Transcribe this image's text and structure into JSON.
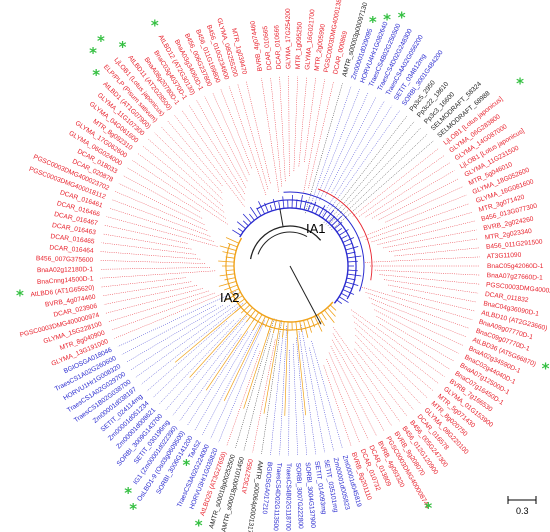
{
  "colors": {
    "red": "#e8212c",
    "blue": "#2a2bd0",
    "orange": "#f0a21a",
    "black": "#222222",
    "star": "#36c043",
    "dotted": "#a8a8d0"
  },
  "clades": [
    {
      "label": "IA1",
      "color": "#2a2bd0"
    },
    {
      "label": "IA2",
      "color": "#f0a21a"
    }
  ],
  "scale_bar": {
    "label": "0.3"
  },
  "leaves_right": [
    {
      "name": "BVRB_4g074460",
      "color": "red"
    },
    {
      "name": "DCAR_010665",
      "color": "red"
    },
    {
      "name": "DCAR_010666",
      "color": "red"
    },
    {
      "name": "GLYMA_17G254200",
      "color": "red"
    },
    {
      "name": "MTR_1g095250",
      "color": "red"
    },
    {
      "name": "GLYMA_16G021700",
      "color": "red"
    },
    {
      "name": "MTR_2g005990",
      "color": "red"
    },
    {
      "name": "PGSC0003DMG400013820",
      "color": "red"
    },
    {
      "name": "DCAR_000869",
      "color": "red"
    },
    {
      "name": "AMTR_s00003p00097130",
      "color": "black"
    },
    {
      "name": "Zm00001d029095",
      "color": "blue",
      "star": true
    },
    {
      "name": "HORVU4Hr1G082640",
      "color": "blue",
      "star": true
    },
    {
      "name": "TraesCS4B02G250500",
      "color": "blue",
      "star": true
    },
    {
      "name": "TraesCS4D02G248300",
      "color": "blue"
    },
    {
      "name": "TraesCS4A02G056200",
      "color": "blue"
    },
    {
      "name": "SETIT_034812mg",
      "color": "blue"
    },
    {
      "name": "SORBI_3001G484200",
      "color": "blue"
    },
    {
      "name": "Pp3c5_2950",
      "color": "black"
    },
    {
      "name": "Pp3c22_18610",
      "color": "black"
    },
    {
      "name": "Pp3c3_16600",
      "color": "black"
    },
    {
      "name": "SELMODRAFT_58324",
      "color": "black"
    },
    {
      "name": "SELMODRAFT_68988",
      "color": "black"
    },
    {
      "name": "LjLOB1 [Lotus japonicus]",
      "color": "red",
      "star": true
    },
    {
      "name": "GLYMA_06G283800",
      "color": "red"
    },
    {
      "name": "GLYMA_14G087000",
      "color": "red"
    },
    {
      "name": "LjLOB1 [Lotus japonicus]",
      "color": "red"
    },
    {
      "name": "GLYMA_11G231500",
      "color": "red"
    },
    {
      "name": "MTR_5g046010",
      "color": "red"
    },
    {
      "name": "GLYMA_18G052600",
      "color": "red"
    },
    {
      "name": "GLYMA_16G081600",
      "color": "red"
    },
    {
      "name": "MTR_3g071420",
      "color": "red"
    },
    {
      "name": "B456_013G077300",
      "color": "red"
    },
    {
      "name": "BVRB_2g024260",
      "color": "red"
    },
    {
      "name": "MTR_2g023340",
      "color": "red"
    },
    {
      "name": "B456_011G291500",
      "color": "red"
    },
    {
      "name": "AT3G11090",
      "color": "red"
    },
    {
      "name": "BnaC05g42060D-1",
      "color": "red"
    },
    {
      "name": "BnaA07g27660D-1",
      "color": "red"
    },
    {
      "name": "PGSC0003DMG400027718",
      "color": "red"
    },
    {
      "name": "DCAR_011832",
      "color": "red"
    },
    {
      "name": "BnaC04g36090D-1",
      "color": "red"
    },
    {
      "name": "AtLBD10 (AT2G23660)",
      "color": "red",
      "star": true
    },
    {
      "name": "BnaA09g07770D-1",
      "color": "red"
    },
    {
      "name": "BnaC09g07770D-1",
      "color": "red"
    },
    {
      "name": "AtLBD36 (AT5G66870)",
      "color": "red",
      "star": true
    },
    {
      "name": "BnaA02g34590D-1",
      "color": "red"
    },
    {
      "name": "BnaC02g44040D-1",
      "color": "red"
    },
    {
      "name": "BnaA07g12500D-1",
      "color": "red"
    },
    {
      "name": "BnaC07g16450D-1",
      "color": "red"
    },
    {
      "name": "BVRB_7g166530",
      "color": "red"
    },
    {
      "name": "GLYMA_01G153900",
      "color": "red"
    },
    {
      "name": "MTR_5g071430",
      "color": "red"
    },
    {
      "name": "MTR_8g020750",
      "color": "red"
    },
    {
      "name": "GLYMA_08G220100",
      "color": "red"
    },
    {
      "name": "DCAR_016578",
      "color": "red"
    },
    {
      "name": "B456_005G247300",
      "color": "red"
    },
    {
      "name": "B456_012G120900",
      "color": "red"
    },
    {
      "name": "BVRB_9g208070",
      "color": "red"
    },
    {
      "name": "PGSC0003DMG400008744",
      "color": "red",
      "star": true
    },
    {
      "name": "BVRB_4g093320",
      "color": "red"
    },
    {
      "name": "DCAR_013809",
      "color": "red"
    },
    {
      "name": "DCAR_010732",
      "color": "red"
    },
    {
      "name": "BVRB_8g201110",
      "color": "red"
    },
    {
      "name": "Zm00001d045819",
      "color": "blue"
    },
    {
      "name": "Zm00001d005823",
      "color": "blue"
    },
    {
      "name": "SETIT_035101mg",
      "color": "blue"
    },
    {
      "name": "SETIT_014093mg",
      "color": "blue"
    },
    {
      "name": "SORBI_3004G137900",
      "color": "blue"
    },
    {
      "name": "SORBI_3007G222800",
      "color": "blue"
    },
    {
      "name": "TraesCS4B02G118700",
      "color": "blue"
    },
    {
      "name": "TraesCS4D02G113500",
      "color": "blue"
    },
    {
      "name": "BGIOSGA017210",
      "color": "blue"
    },
    {
      "name": "AMTR_s00064p00013170",
      "color": "black"
    }
  ],
  "leaves_left": [
    {
      "name": "AT3G27650",
      "color": "red"
    },
    {
      "name": "AMTR_s00018p00101450",
      "color": "black"
    },
    {
      "name": "AMTR_s00018p00252500",
      "color": "black"
    },
    {
      "name": "AtLBD25 (AT3G27650)",
      "color": "red",
      "star": true
    },
    {
      "name": "HORVU3Hr1G035820",
      "color": "blue"
    },
    {
      "name": "TraesCS3A02G224000",
      "color": "blue"
    },
    {
      "name": "TaAS2",
      "color": "blue",
      "star": true
    },
    {
      "name": "SORBI_3006G141200",
      "color": "blue"
    },
    {
      "name": "OsLBD1-9 (Os03g0609500)",
      "color": "blue",
      "star": true
    },
    {
      "name": "IG1 (Zm00001d022390)",
      "color": "blue",
      "star": true
    },
    {
      "name": "SETIT_030196mg",
      "color": "blue"
    },
    {
      "name": "SORBI_3009G143700",
      "color": "blue"
    },
    {
      "name": "Zm00001d008621",
      "color": "blue"
    },
    {
      "name": "Zm00001d051234",
      "color": "blue"
    },
    {
      "name": "SETIT_024114mg",
      "color": "blue"
    },
    {
      "name": "Zm00001d038197",
      "color": "blue"
    },
    {
      "name": "TraesCS1B02G038700",
      "color": "blue"
    },
    {
      "name": "TraesCS1A02G029700",
      "color": "blue"
    },
    {
      "name": "HORVU1Hr1G008320",
      "color": "blue"
    },
    {
      "name": "TraesCS1A02G260600",
      "color": "blue"
    },
    {
      "name": "BGIOSGA018046",
      "color": "blue"
    },
    {
      "name": "GLYMA_13G191000",
      "color": "red"
    },
    {
      "name": "MTR_8g040900",
      "color": "red"
    },
    {
      "name": "GLYMA_15G228100",
      "color": "red"
    },
    {
      "name": "PGSC0003DMG400000974",
      "color": "red"
    },
    {
      "name": "DCAR_023906",
      "color": "red"
    },
    {
      "name": "BVRB_4g074460",
      "color": "red"
    },
    {
      "name": "AtLBD6 (AT1G65620)",
      "color": "red",
      "star": true
    },
    {
      "name": "BnaCnng14500D-1",
      "color": "red"
    },
    {
      "name": "BnaA02g12180D-1",
      "color": "red"
    },
    {
      "name": "B456_007G375600",
      "color": "red"
    },
    {
      "name": "DCAR_016464",
      "color": "red"
    },
    {
      "name": "DCAR_016465",
      "color": "red"
    },
    {
      "name": "DCAR_016463",
      "color": "red"
    },
    {
      "name": "DCAR_016467",
      "color": "red"
    },
    {
      "name": "DCAR_016466",
      "color": "red"
    },
    {
      "name": "DCAR_016461",
      "color": "red"
    },
    {
      "name": "PGSC0003DMG400018112",
      "color": "red"
    },
    {
      "name": "PGSC0003DMG400023702",
      "color": "red"
    },
    {
      "name": "DCAR_020878",
      "color": "red"
    },
    {
      "name": "DCAR_018033",
      "color": "red"
    },
    {
      "name": "GLYMA_06G024000",
      "color": "red"
    },
    {
      "name": "GLYMA_17G062600",
      "color": "red"
    },
    {
      "name": "MTR_8g092310",
      "color": "red"
    },
    {
      "name": "GLYMA_04G061600",
      "color": "red"
    },
    {
      "name": "GLYMA_11G107300",
      "color": "red"
    },
    {
      "name": "AtLBD1 (AT1G07900)",
      "color": "red",
      "star": true
    },
    {
      "name": "ELP/PLP (Pisum sativum)",
      "color": "red",
      "star": true
    },
    {
      "name": "LjLOB1 (Lotus japonicus)",
      "color": "red",
      "star": true
    },
    {
      "name": "AtLBD11 (AT2G28500)",
      "color": "red",
      "star": true
    },
    {
      "name": "BnaA08g20780D-1",
      "color": "red"
    },
    {
      "name": "BnaC03g40370D-1",
      "color": "red"
    },
    {
      "name": "AtLBD12 (AT2G30130)",
      "color": "red",
      "star": true
    },
    {
      "name": "BnaA03g34060D-1",
      "color": "red"
    },
    {
      "name": "B456_006G237800",
      "color": "red"
    },
    {
      "name": "B456_011G169800",
      "color": "red"
    },
    {
      "name": "B456_010G234900",
      "color": "red"
    },
    {
      "name": "GLYMA_08G255200",
      "color": "red"
    },
    {
      "name": "MTR_1g039470",
      "color": "red"
    }
  ]
}
